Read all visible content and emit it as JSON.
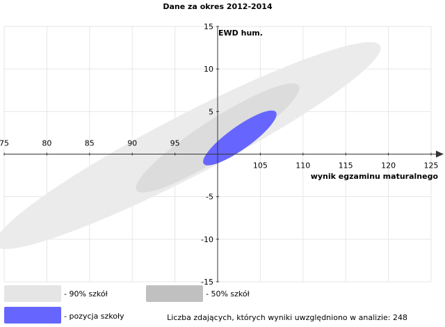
{
  "chart_data": {
    "type": "scatter",
    "title": "Dane za okres 2012-2014",
    "xlabel": "wynik egzaminu maturalnego",
    "ylabel": "EWD hum.",
    "xlim": [
      75,
      125
    ],
    "ylim": [
      -15,
      15
    ],
    "x_ticks": [
      "75",
      "80",
      "85",
      "90",
      "95",
      "105",
      "110",
      "115",
      "120",
      "125"
    ],
    "y_ticks": [
      "15",
      "10",
      "5",
      "-5",
      "-10",
      "-15"
    ],
    "grid": true,
    "regions": [
      {
        "name": "- 90% szkół",
        "color": "#ebebeb",
        "center": [
          96.5,
          1.0
        ],
        "a": 25.4,
        "b": 3.55,
        "angle_deg": 27.4
      },
      {
        "name": "- 50% szkół",
        "color": "#dcdcdc",
        "center": [
          100.0,
          1.9
        ],
        "a": 11.3,
        "b": 2.2,
        "angle_deg": 32.8
      },
      {
        "name": "- pozycja szkoły",
        "color": "#6666ff",
        "center": [
          102.6,
          1.9
        ],
        "a": 5.2,
        "b": 1.33,
        "angle_deg": 35.5
      }
    ]
  },
  "legend": {
    "items": [
      {
        "label": "- 90% szkół",
        "color": "#e5e5e5"
      },
      {
        "label": "- 50% szkół",
        "color": "#c0c0c0"
      },
      {
        "label": "- pozycja szkoły",
        "color": "#6666ff"
      }
    ]
  },
  "footer": {
    "count_text": "Liczba zdających, których wyniki uwzględniono w analizie: 248"
  },
  "colors": {
    "axis": "#333333",
    "grid": "#e6e6e6"
  }
}
